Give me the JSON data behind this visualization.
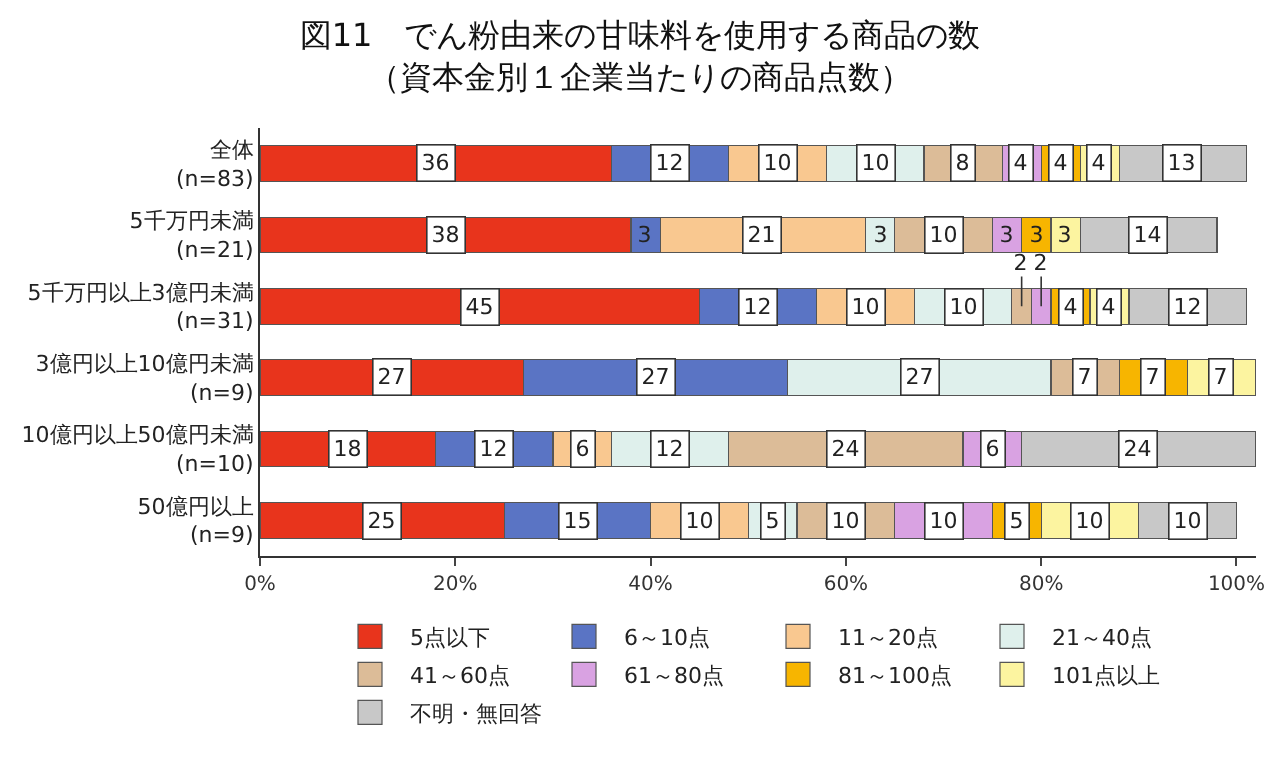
{
  "chart_data": {
    "type": "bar",
    "orientation": "horizontal",
    "stacked": true,
    "title": "図11　でん粉由来の甘味料を使用する商品の数",
    "subtitle": "（資本金別１企業当たりの商品点数）",
    "categories": [
      "全体\n(n=83)",
      "5千万円未満\n(n=21)",
      "5千万円以上3億円未満\n(n=31)",
      "3億円以上10億円未満\n(n=9)",
      "10億円以上50億円未満\n(n=10)",
      "50億円以上\n(n=9)"
    ],
    "series": [
      {
        "name": "5点以下",
        "color": "#e8341c",
        "values": [
          36,
          38,
          45,
          27,
          18,
          25
        ]
      },
      {
        "name": "6～10点",
        "color": "#5a74c4",
        "values": [
          12,
          3,
          12,
          27,
          12,
          15
        ]
      },
      {
        "name": "11～20点",
        "color": "#f9c890",
        "values": [
          10,
          21,
          10,
          null,
          6,
          10
        ]
      },
      {
        "name": "21～40点",
        "color": "#dff0ec",
        "values": [
          10,
          3,
          10,
          27,
          12,
          5
        ]
      },
      {
        "name": "41～60点",
        "color": "#dcbc98",
        "values": [
          8,
          10,
          2,
          7,
          24,
          10
        ]
      },
      {
        "name": "61～80点",
        "color": "#d9a2e2",
        "values": [
          4,
          3,
          2,
          null,
          6,
          10
        ]
      },
      {
        "name": "81～100点",
        "color": "#f7b500",
        "values": [
          4,
          3,
          4,
          7,
          null,
          5
        ]
      },
      {
        "name": "101点以上",
        "color": "#fcf4a0",
        "values": [
          4,
          3,
          4,
          7,
          null,
          10
        ]
      },
      {
        "name": "不明・無回答",
        "color": "#c8c8c8",
        "values": [
          13,
          14,
          12,
          null,
          24,
          10
        ]
      }
    ],
    "data_labels": true,
    "xlim": [
      0,
      102
    ],
    "xticks": [
      {
        "value": 0,
        "label": "0%"
      },
      {
        "value": 20,
        "label": "20%"
      },
      {
        "value": 40,
        "label": "40%"
      },
      {
        "value": 60,
        "label": "60%"
      },
      {
        "value": 80,
        "label": "80%"
      },
      {
        "value": 100,
        "label": "100%"
      }
    ],
    "grid": false,
    "legend": "bottom"
  }
}
